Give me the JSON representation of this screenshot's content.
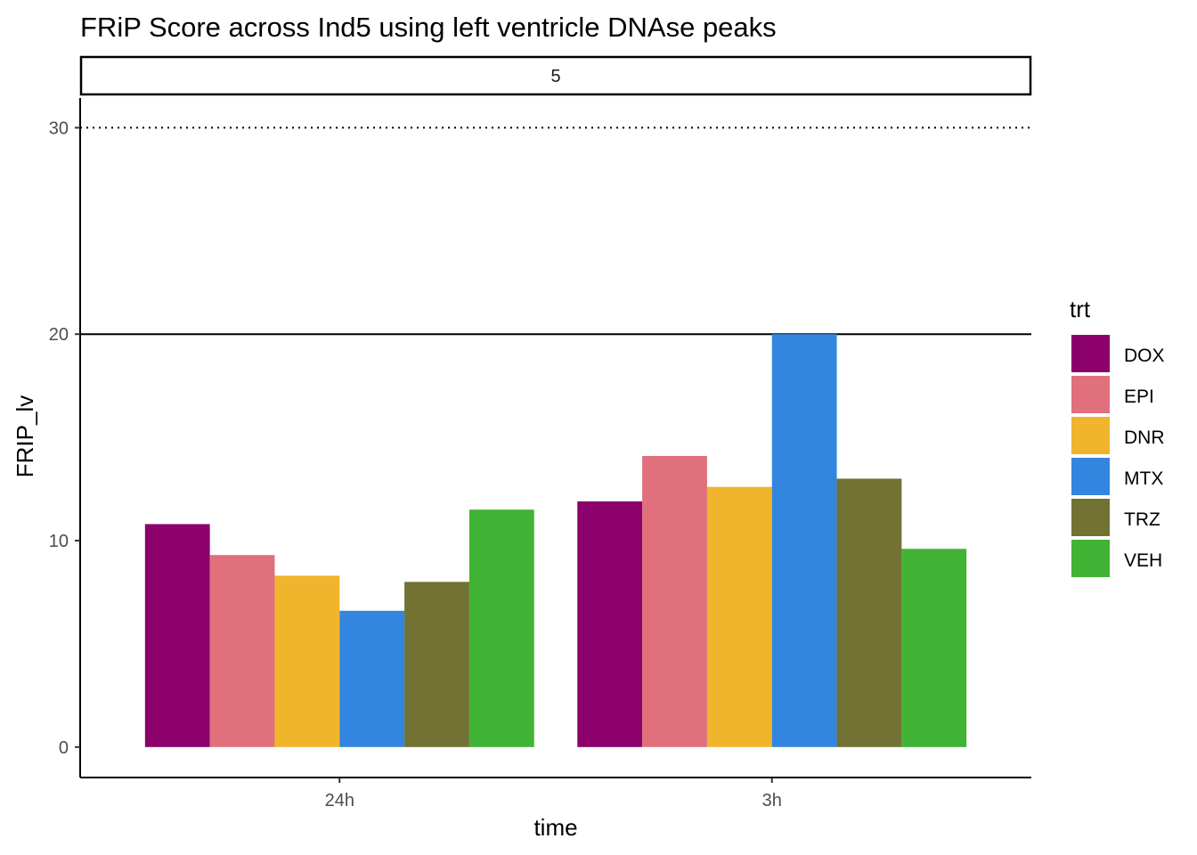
{
  "chart_data": {
    "type": "bar",
    "title": "FRiP Score  across Ind5 using left ventricle DNAse peaks",
    "facet_label": "5",
    "xlabel": "time",
    "ylabel": "FRIP_lv",
    "categories": [
      "24h",
      "3h"
    ],
    "ylim": [
      -1.4,
      31.5
    ],
    "y_ticks": [
      0,
      10,
      20,
      30
    ],
    "reference_lines": [
      {
        "value": 20,
        "style": "solid"
      },
      {
        "value": 30,
        "style": "dotted"
      }
    ],
    "grid": false,
    "legend_position": "right",
    "legend_title": "trt",
    "series": [
      {
        "name": "DOX",
        "color": "#8B006B",
        "values": [
          10.8,
          11.9
        ]
      },
      {
        "name": "EPI",
        "color": "#E0707C",
        "values": [
          9.3,
          14.1
        ]
      },
      {
        "name": "DNR",
        "color": "#F0B52C",
        "values": [
          8.3,
          12.6
        ]
      },
      {
        "name": "MTX",
        "color": "#3386E0",
        "values": [
          6.6,
          20.0
        ]
      },
      {
        "name": "TRZ",
        "color": "#717233",
        "values": [
          8.0,
          13.0
        ]
      },
      {
        "name": "VEH",
        "color": "#41B334",
        "values": [
          11.5,
          9.6
        ]
      }
    ]
  }
}
